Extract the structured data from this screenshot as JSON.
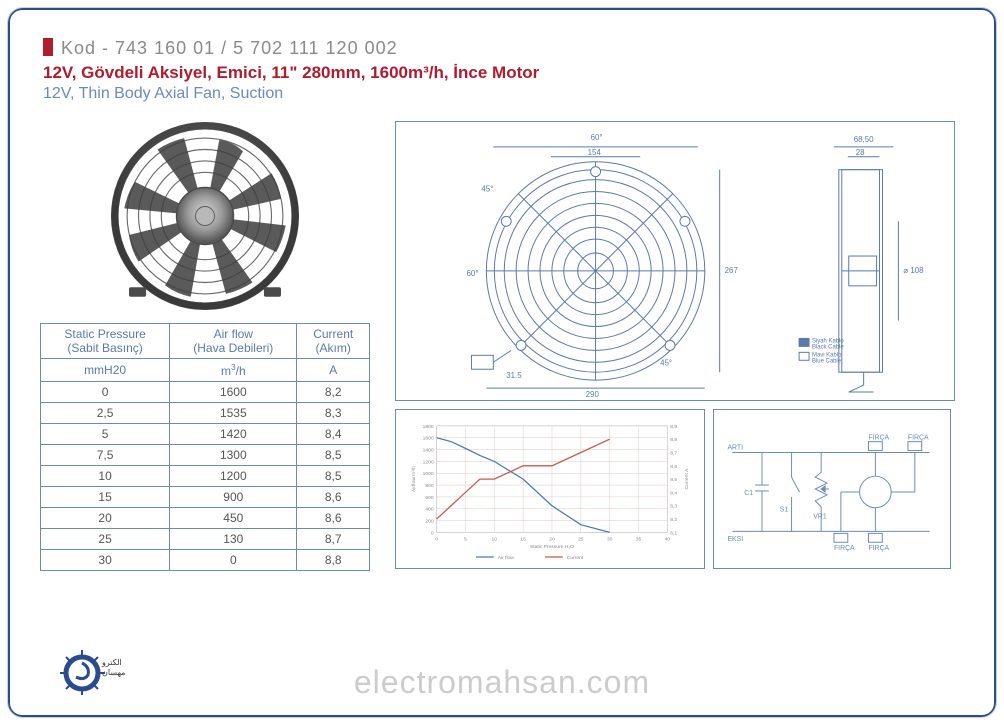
{
  "header": {
    "code_prefix": "Kod - ",
    "code1": "743 160 01",
    "code_sep": "  /  ",
    "code2": "5 702 111 120 002",
    "title_red": "12V, Gövdeli Aksiyel, Emici, 11\" 280mm, 1600m³/h, İnce Motor",
    "title_blue": "12V, Thin Body Axial Fan, Suction"
  },
  "table": {
    "headers": {
      "col1_a": "Static Pressure",
      "col1_b": "(Sabit Basınç)",
      "col1_unit": "mmH20",
      "col2_a": "Air flow",
      "col2_b": "(Hava Debileri)",
      "col2_unit": "m³/h",
      "col3_a": "Current",
      "col3_b": "(Akım)",
      "col3_unit": "A"
    },
    "rows": [
      [
        "0",
        "1600",
        "8,2"
      ],
      [
        "2,5",
        "1535",
        "8,3"
      ],
      [
        "5",
        "1420",
        "8,4"
      ],
      [
        "7,5",
        "1300",
        "8,5"
      ],
      [
        "10",
        "1200",
        "8,5"
      ],
      [
        "15",
        "900",
        "8,6"
      ],
      [
        "20",
        "450",
        "8,6"
      ],
      [
        "25",
        "130",
        "8,7"
      ],
      [
        "30",
        "0",
        "8,8"
      ]
    ],
    "border_color": "#6a8bb8"
  },
  "drawing": {
    "dims": {
      "top_angle": "60°",
      "width_inner": "154",
      "height": "267",
      "diameter": "⌀ 108",
      "bottom_width": "290",
      "hole_offset": "31.5",
      "angle45": "45°",
      "side_angle": "60°",
      "depth1": "68,50",
      "depth2": "28"
    },
    "cable_black": "Siyah Kablo\nBlack Cable",
    "cable_blue": "Mavi Kablo\nBlue Cable",
    "color": "#5a7aad"
  },
  "chart": {
    "type": "line",
    "x_label": "Static Pressure H₂O",
    "y1_label": "Airflow m³/h",
    "y2_label": "Current A",
    "xlim": [
      0,
      40
    ],
    "xtick": [
      0,
      5,
      10,
      15,
      20,
      25,
      30,
      35,
      40
    ],
    "y1_lim": [
      0,
      1800
    ],
    "y1_tick": [
      0,
      200,
      400,
      600,
      800,
      1000,
      1200,
      1400,
      1600,
      1800
    ],
    "y2_lim": [
      8.1,
      8.9
    ],
    "y2_tick": [
      "8,1",
      "8,2",
      "8,3",
      "8,4",
      "8,5",
      "8,6",
      "8,7",
      "8,8",
      "8,9"
    ],
    "airflow_series": {
      "color": "#4a7bb5",
      "pts": [
        [
          0,
          1600
        ],
        [
          2.5,
          1535
        ],
        [
          5,
          1420
        ],
        [
          7.5,
          1300
        ],
        [
          10,
          1200
        ],
        [
          15,
          900
        ],
        [
          20,
          450
        ],
        [
          25,
          130
        ],
        [
          30,
          0
        ]
      ]
    },
    "current_series": {
      "color": "#c75b4a",
      "pts": [
        [
          0,
          8.2
        ],
        [
          2.5,
          8.3
        ],
        [
          5,
          8.4
        ],
        [
          7.5,
          8.5
        ],
        [
          10,
          8.5
        ],
        [
          15,
          8.6
        ],
        [
          20,
          8.6
        ],
        [
          25,
          8.7
        ],
        [
          30,
          8.8
        ]
      ]
    },
    "legend": {
      "airflow": "Air flow",
      "current": "Current"
    },
    "grid_color": "#e0c8c8",
    "font_size": 5
  },
  "circuit": {
    "labels": {
      "artI": "ARTI",
      "eksi": "EKSİ",
      "firca": "FIRÇA",
      "s1": "S1",
      "vr1": "VR1",
      "c1": "C1"
    },
    "color": "#6a8bb8"
  },
  "watermark": "electromahsan.com",
  "logo": {
    "text_ar": "الکترو مهسان",
    "color": "#2a4b8d"
  }
}
